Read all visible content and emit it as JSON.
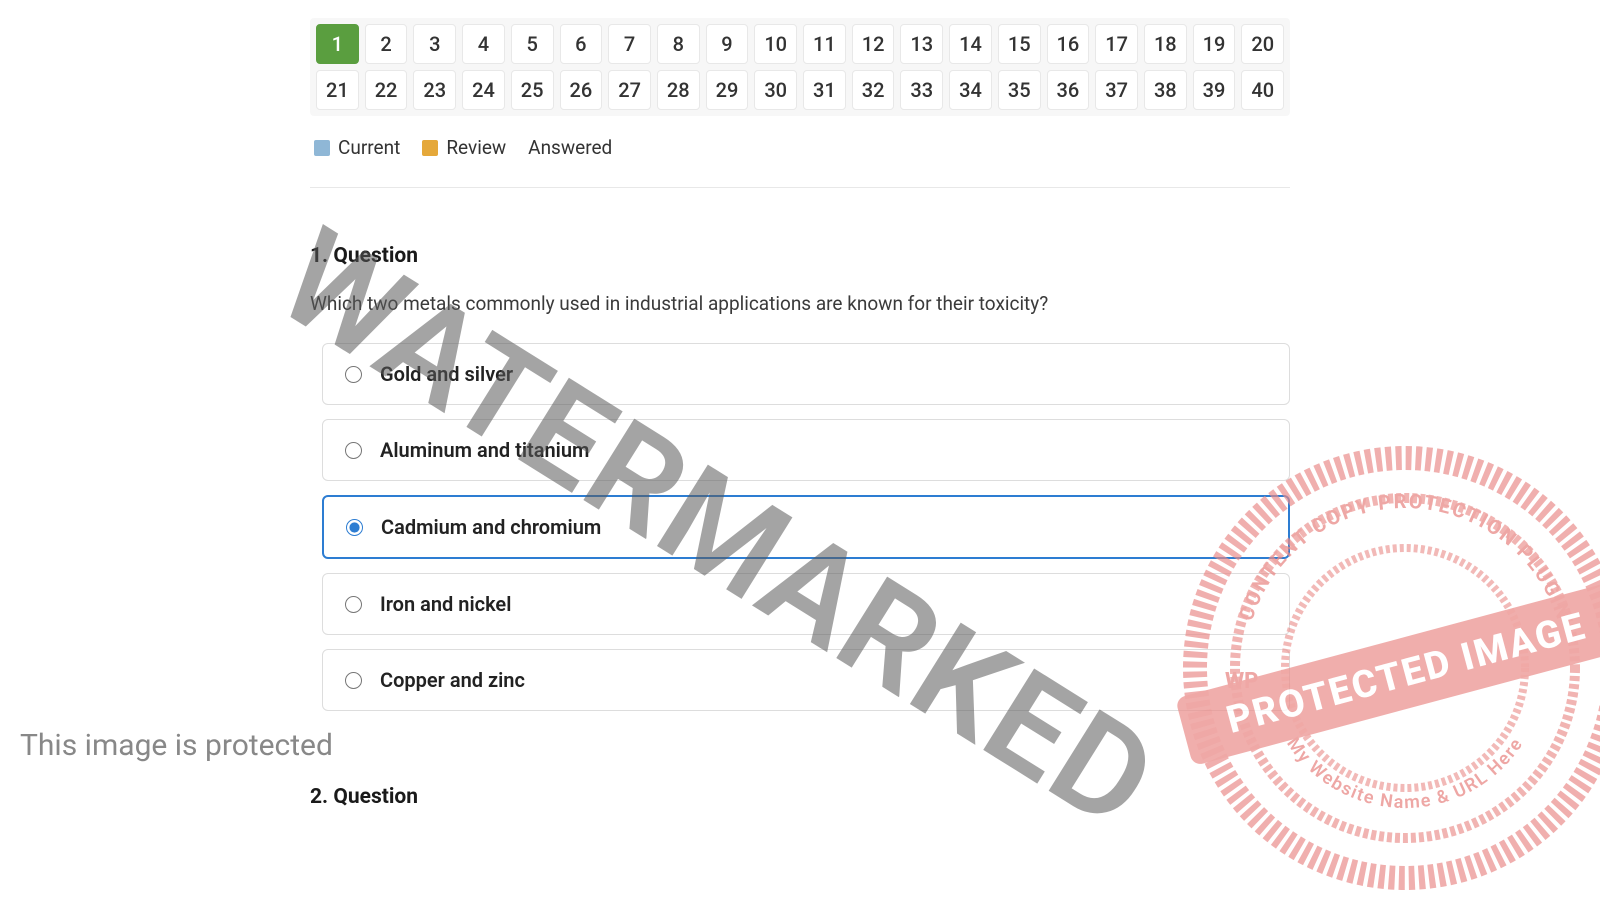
{
  "nav": {
    "rows": [
      [
        "1",
        "2",
        "3",
        "4",
        "5",
        "6",
        "7",
        "8",
        "9",
        "10",
        "11",
        "12",
        "13",
        "14",
        "15",
        "16",
        "17",
        "18",
        "19",
        "20"
      ],
      [
        "21",
        "22",
        "23",
        "24",
        "25",
        "26",
        "27",
        "28",
        "29",
        "30",
        "31",
        "32",
        "33",
        "34",
        "35",
        "36",
        "37",
        "38",
        "39",
        "40"
      ]
    ],
    "current_index": 0,
    "colors": {
      "current_bg": "#5a9e3f",
      "cell_bg": "#ffffff",
      "cell_border": "#e8e8e8",
      "grid_bg": "#f7f7f7"
    }
  },
  "legend": {
    "items": [
      {
        "label": "Current",
        "color": "#8fb7d6"
      },
      {
        "label": "Review",
        "color": "#e5a83a"
      },
      {
        "label": "Answered",
        "color": null
      }
    ]
  },
  "questions": [
    {
      "heading": "1. Question",
      "text": "Which two metals commonly used in industrial applications are known for their toxicity?",
      "selected": 2,
      "options": [
        "Gold and silver",
        "Aluminum and titanium",
        "Cadmium and chromium",
        "Iron and nickel",
        "Copper and zinc"
      ]
    },
    {
      "heading": "2. Question",
      "text": "",
      "selected": -1,
      "options": []
    }
  ],
  "watermark": {
    "text": "WATERMARKED",
    "color": "rgba(90,90,90,0.55)",
    "fontsize": 135,
    "angle_deg": 32
  },
  "stamp": {
    "color": "#e98a87",
    "outer_text_top": "CONTENT COPY PROTECTION PLUGIN",
    "banner_text": "PROTECTED IMAGE",
    "outer_text_bottom": "My Website Name & URL Here",
    "prefix_text": "WP"
  },
  "protected_label": "This image is protected",
  "styling": {
    "option_border": "#dddddd",
    "option_selected_border": "#2d7dd2",
    "text_color": "#333333",
    "heading_color": "#1a1a1a",
    "radio_accent": "#2d7dd2",
    "divider": "#e8e8e8"
  }
}
